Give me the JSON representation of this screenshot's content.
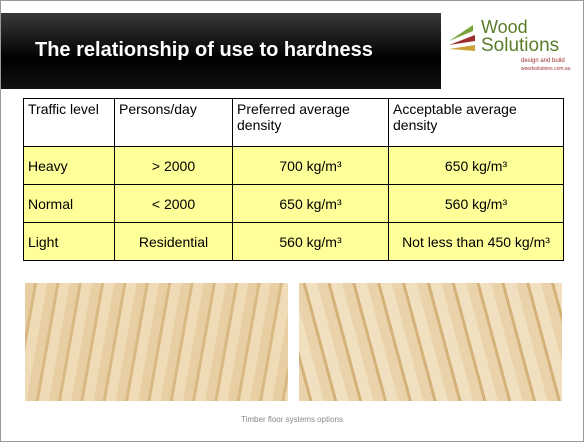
{
  "header": {
    "title": "The relationship of use to hardness"
  },
  "logo": {
    "name_top": "Wood",
    "name_bottom": "Solutions",
    "tagline": "design and build",
    "url": "woodsolutions.com.au"
  },
  "table": {
    "columns": [
      "Traffic level",
      "Persons/day",
      "Preferred average density",
      "Acceptable average density"
    ],
    "rows": [
      [
        "Heavy",
        "> 2000",
        "700 kg/m³",
        "650 kg/m³"
      ],
      [
        "Normal",
        "< 2000",
        "650 kg/m³",
        "560 kg/m³"
      ],
      [
        "Light",
        "Residential",
        "560 kg/m³",
        "Not less than 450 kg/m³"
      ]
    ]
  },
  "footer": {
    "text": "Timber floor systems options"
  }
}
